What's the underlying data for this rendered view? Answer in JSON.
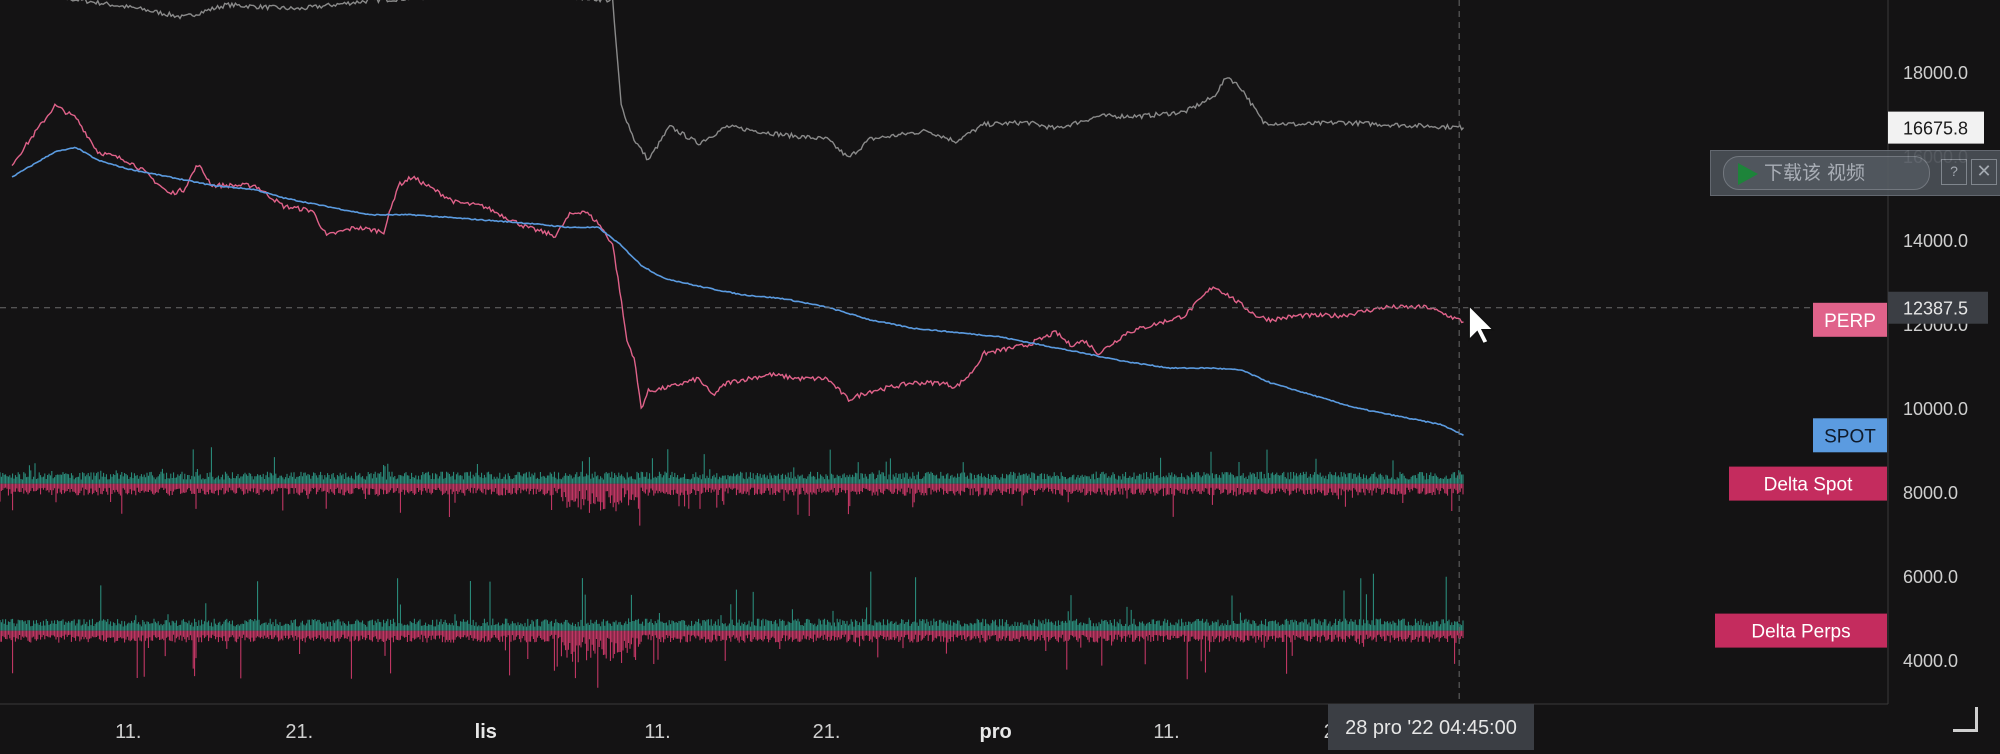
{
  "chart_data": {
    "type": "line",
    "y_axis": {
      "ticks": [
        "18000.0",
        "16000.0",
        "14000.0",
        "12000.0",
        "10000.0",
        "8000.0",
        "6000.0",
        "4000.0"
      ],
      "tick_values": [
        18000,
        16000,
        14000,
        12000,
        10000,
        8000,
        6000,
        4000
      ],
      "range": [
        3000,
        19700
      ]
    },
    "x_axis": {
      "ticks": [
        {
          "label": "11.",
          "bold": false
        },
        {
          "label": "21.",
          "bold": false
        },
        {
          "label": "lis",
          "bold": true
        },
        {
          "label": "11.",
          "bold": false
        },
        {
          "label": "21.",
          "bold": false
        },
        {
          "label": "pro",
          "bold": true
        },
        {
          "label": "11.",
          "bold": false
        },
        {
          "label": "21.",
          "bold": false
        }
      ],
      "tick_positions": [
        0.0885,
        0.2064,
        0.335,
        0.4535,
        0.57,
        0.6866,
        0.8045,
        0.9224
      ],
      "range_days": [
        0,
        86
      ]
    },
    "series": [
      {
        "color": "#8a8a8a",
        "points": [
          [
            0,
            19900
          ],
          [
            5,
            19700
          ],
          [
            9,
            19500
          ],
          [
            12,
            19300
          ],
          [
            15,
            19600
          ],
          [
            20,
            19500
          ],
          [
            25,
            19700
          ],
          [
            30,
            19800
          ],
          [
            36,
            19900
          ],
          [
            42,
            19700
          ],
          [
            42.6,
            17200
          ],
          [
            43.5,
            16400
          ],
          [
            44.5,
            15900
          ],
          [
            46,
            16700
          ],
          [
            48,
            16300
          ],
          [
            50,
            16700
          ],
          [
            54,
            16500
          ],
          [
            57,
            16400
          ],
          [
            58.5,
            15950
          ],
          [
            60,
            16400
          ],
          [
            64,
            16600
          ],
          [
            66,
            16350
          ],
          [
            68,
            16750
          ],
          [
            71,
            16800
          ],
          [
            73,
            16650
          ],
          [
            76,
            16950
          ],
          [
            79,
            16950
          ],
          [
            82,
            17050
          ],
          [
            84,
            17400
          ],
          [
            85,
            17900
          ],
          [
            86,
            17600
          ],
          [
            87.5,
            16800
          ],
          [
            90,
            16750
          ],
          [
            93,
            16800
          ],
          [
            96,
            16750
          ],
          [
            100,
            16700
          ],
          [
            101.5,
            16675.8
          ]
        ]
      },
      {
        "name": "PERP",
        "color": "#e0628a",
        "points": [
          [
            0,
            15800
          ],
          [
            1.5,
            16500
          ],
          [
            3,
            17200
          ],
          [
            4.5,
            16900
          ],
          [
            6,
            16100
          ],
          [
            8,
            15900
          ],
          [
            9,
            15700
          ],
          [
            11,
            15100
          ],
          [
            12,
            15200
          ],
          [
            13,
            15800
          ],
          [
            14,
            15300
          ],
          [
            17,
            15300
          ],
          [
            19,
            14800
          ],
          [
            21,
            14700
          ],
          [
            22,
            14100
          ],
          [
            24,
            14300
          ],
          [
            26,
            14200
          ],
          [
            27,
            15300
          ],
          [
            28,
            15500
          ],
          [
            29,
            15300
          ],
          [
            31,
            14900
          ],
          [
            33,
            14800
          ],
          [
            36,
            14300
          ],
          [
            38,
            14100
          ],
          [
            39,
            14600
          ],
          [
            40,
            14700
          ],
          [
            41,
            14400
          ],
          [
            42,
            13900
          ],
          [
            42.5,
            12800
          ],
          [
            43,
            11600
          ],
          [
            43.5,
            11200
          ],
          [
            44,
            10000
          ],
          [
            44.5,
            10400
          ],
          [
            46,
            10500
          ],
          [
            48,
            10700
          ],
          [
            49,
            10300
          ],
          [
            50,
            10600
          ],
          [
            53,
            10800
          ],
          [
            55,
            10700
          ],
          [
            57,
            10700
          ],
          [
            58.5,
            10200
          ],
          [
            60,
            10400
          ],
          [
            63,
            10600
          ],
          [
            65,
            10600
          ],
          [
            66,
            10500
          ],
          [
            67,
            10800
          ],
          [
            68,
            11300
          ],
          [
            71,
            11500
          ],
          [
            73,
            11800
          ],
          [
            74,
            11500
          ],
          [
            75,
            11600
          ],
          [
            76,
            11300
          ],
          [
            78,
            11800
          ],
          [
            80,
            12000
          ],
          [
            82,
            12200
          ],
          [
            84,
            12900
          ],
          [
            85,
            12700
          ],
          [
            87,
            12200
          ],
          [
            88,
            12100
          ],
          [
            90,
            12200
          ],
          [
            93,
            12200
          ],
          [
            96,
            12400
          ],
          [
            99,
            12400
          ],
          [
            101.5,
            12050
          ]
        ]
      },
      {
        "name": "SPOT",
        "color": "#5b9be0",
        "points": [
          [
            0,
            15500
          ],
          [
            1,
            15700
          ],
          [
            3,
            16100
          ],
          [
            4.5,
            16200
          ],
          [
            6,
            15900
          ],
          [
            8,
            15700
          ],
          [
            11,
            15500
          ],
          [
            14,
            15300
          ],
          [
            17,
            15200
          ],
          [
            19,
            15000
          ],
          [
            22,
            14800
          ],
          [
            25,
            14600
          ],
          [
            28,
            14600
          ],
          [
            32,
            14500
          ],
          [
            36,
            14400
          ],
          [
            39,
            14300
          ],
          [
            41,
            14300
          ],
          [
            42.5,
            13900
          ],
          [
            44,
            13400
          ],
          [
            45.5,
            13100
          ],
          [
            48,
            12900
          ],
          [
            51,
            12700
          ],
          [
            54,
            12600
          ],
          [
            57,
            12400
          ],
          [
            60,
            12100
          ],
          [
            63,
            11900
          ],
          [
            66,
            11800
          ],
          [
            69,
            11700
          ],
          [
            72,
            11500
          ],
          [
            75,
            11300
          ],
          [
            78,
            11100
          ],
          [
            81,
            10950
          ],
          [
            84,
            10950
          ],
          [
            86,
            10900
          ],
          [
            88,
            10600
          ],
          [
            90,
            10400
          ],
          [
            92,
            10200
          ],
          [
            94,
            10000
          ],
          [
            97,
            9800
          ],
          [
            100,
            9600
          ],
          [
            101.5,
            9350
          ]
        ]
      }
    ],
    "histograms": [
      {
        "name": "Delta Spot",
        "baseline": 8200,
        "color_pos": "#2fa48f",
        "color_neg": "#d23a6c"
      },
      {
        "name": "Delta Perps",
        "baseline": 4700,
        "color_pos": "#2fa48f",
        "color_neg": "#d23a6c"
      }
    ],
    "labels": [
      {
        "text": "PERP",
        "value": 12100,
        "bg": "#e0628a",
        "fg": "#ffffff"
      },
      {
        "text": "SPOT",
        "value": 9350,
        "bg": "#5b9be0",
        "fg": "#0f1a2a"
      },
      {
        "text": "Delta Spot",
        "value": 8200,
        "bg": "#c42c5e",
        "fg": "#ffffff"
      },
      {
        "text": "Delta Perps",
        "value": 4700,
        "bg": "#c42c5e",
        "fg": "#ffffff"
      }
    ],
    "last_price": {
      "text": "16675.8",
      "value": 16675.8
    },
    "crosshair": {
      "y_text": "12387.5",
      "y_value": 12387.5,
      "x_day": 101.2,
      "x_text": "28 pro '22   04:45:00"
    }
  },
  "watermark": {
    "text": "下载该 视频",
    "help": "?",
    "close": "✕"
  },
  "colors": {
    "background": "#141314",
    "grid": "#2a2a2a",
    "axis_text": "#cfcfcf"
  },
  "icons": {
    "cursor": "mouse-pointer-icon",
    "watermark": "play-icon",
    "resize": "resize-corner-icon"
  }
}
